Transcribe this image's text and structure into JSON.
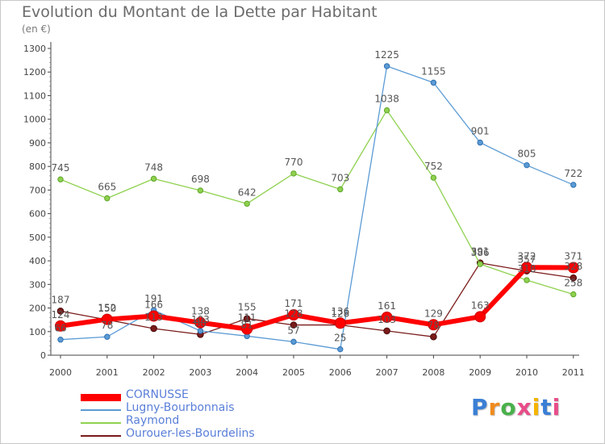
{
  "title": "Evolution du Montant de la Dette par Habitant",
  "subtitle": "(en €)",
  "logo": "Proxiti",
  "chart_data": {
    "type": "line",
    "x": [
      "2000",
      "2001",
      "2002",
      "2003",
      "2004",
      "2005",
      "2006",
      "2007",
      "2008",
      "2009",
      "2010",
      "2011"
    ],
    "ylim": [
      0,
      1300
    ],
    "yticks": [
      0,
      100,
      200,
      300,
      400,
      500,
      600,
      700,
      800,
      900,
      1000,
      1100,
      1200,
      1300
    ],
    "grid": false,
    "legend_position": "bottom-left",
    "series": [
      {
        "name": "CORNUSSE",
        "color": "#ff0000",
        "values": [
          124,
          152,
          166,
          138,
          111,
          171,
          136,
          161,
          129,
          163,
          372,
          371
        ]
      },
      {
        "name": "Lugny-Bourbonnais",
        "color": "#5b9bd5",
        "values": [
          66,
          78,
          191,
          103,
          81,
          57,
          25,
          1225,
          1155,
          901,
          805,
          722
        ]
      },
      {
        "name": "Raymond",
        "color": "#8fd14f",
        "values": [
          745,
          665,
          748,
          698,
          642,
          770,
          703,
          1038,
          752,
          386,
          318,
          258
        ]
      },
      {
        "name": "Ourouer-les-Bourdelins",
        "color": "#7b1a1a",
        "values": [
          187,
          150,
          113,
          88,
          155,
          128,
          128,
          103,
          78,
          391,
          357,
          328
        ]
      }
    ]
  }
}
